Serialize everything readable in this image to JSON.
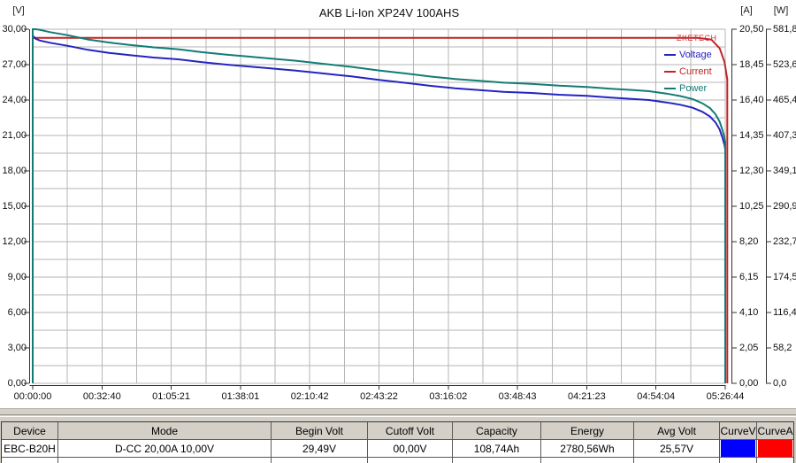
{
  "chart_data": {
    "type": "line",
    "title": "AKB Li-Ion XP24V 100AHS",
    "watermark": "ZKETECH",
    "grid": {
      "on": true,
      "color": "#b6b6b6",
      "x_divisions": 20,
      "y_divisions": 20
    },
    "x_axis": {
      "tick_labels": [
        "00:00:00",
        "00:32:40",
        "01:05:21",
        "01:38:01",
        "02:10:42",
        "02:43:22",
        "03:16:02",
        "03:48:43",
        "04:21:23",
        "04:54:04",
        "05:26:44"
      ]
    },
    "y_axes": [
      {
        "id": "voltage",
        "unit": "[V]",
        "min": 0,
        "max": 30,
        "tick_labels": [
          "30,00",
          "27,00",
          "24,00",
          "21,00",
          "18,00",
          "15,00",
          "12,00",
          "9,00",
          "6,00",
          "3,00",
          "0,00"
        ]
      },
      {
        "id": "current",
        "unit": "[A]",
        "min": 0,
        "max": 20.5,
        "tick_labels": [
          "20,50",
          "18,45",
          "16,40",
          "14,35",
          "12,30",
          "10,25",
          "8,20",
          "6,15",
          "4,10",
          "2,05",
          "0,00"
        ]
      },
      {
        "id": "power",
        "unit": "[W]",
        "min": 0,
        "max": 581.8,
        "tick_labels": [
          "581,8",
          "523,6",
          "465,4",
          "407,3",
          "349,1",
          "290,9",
          "232,7",
          "174,5",
          "116,4",
          "58,2",
          "0,0"
        ]
      }
    ],
    "legend": {
      "position": "top-right",
      "entries": [
        {
          "label": "Voltage",
          "color": "#2424c0"
        },
        {
          "label": "Current",
          "color": "#c02424"
        },
        {
          "label": "Power",
          "color": "#127c74"
        }
      ]
    },
    "series": [
      {
        "name": "Voltage",
        "axis": "voltage",
        "color": "#2424c0",
        "points": [
          [
            0,
            29.45
          ],
          [
            0.004,
            29.2
          ],
          [
            0.01,
            29.05
          ],
          [
            0.025,
            28.85
          ],
          [
            0.05,
            28.6
          ],
          [
            0.08,
            28.25
          ],
          [
            0.11,
            28.0
          ],
          [
            0.14,
            27.8
          ],
          [
            0.175,
            27.6
          ],
          [
            0.21,
            27.45
          ],
          [
            0.245,
            27.2
          ],
          [
            0.28,
            27.0
          ],
          [
            0.31,
            26.85
          ],
          [
            0.34,
            26.7
          ],
          [
            0.38,
            26.5
          ],
          [
            0.42,
            26.25
          ],
          [
            0.46,
            26.0
          ],
          [
            0.5,
            25.7
          ],
          [
            0.54,
            25.45
          ],
          [
            0.575,
            25.2
          ],
          [
            0.61,
            25.0
          ],
          [
            0.645,
            24.85
          ],
          [
            0.68,
            24.7
          ],
          [
            0.72,
            24.6
          ],
          [
            0.76,
            24.45
          ],
          [
            0.8,
            24.35
          ],
          [
            0.835,
            24.2
          ],
          [
            0.865,
            24.1
          ],
          [
            0.89,
            24.0
          ],
          [
            0.915,
            23.8
          ],
          [
            0.935,
            23.6
          ],
          [
            0.953,
            23.35
          ],
          [
            0.967,
            23.0
          ],
          [
            0.978,
            22.6
          ],
          [
            0.986,
            22.1
          ],
          [
            0.992,
            21.5
          ],
          [
            0.996,
            20.8
          ],
          [
            0.999,
            20.2
          ],
          [
            1.0,
            19.8
          ]
        ]
      },
      {
        "name": "Current",
        "axis": "current",
        "color": "#c02424",
        "points": [
          [
            0,
            0
          ],
          [
            0,
            20.0
          ],
          [
            0.96,
            20.0
          ],
          [
            0.98,
            19.9
          ],
          [
            0.992,
            19.4
          ],
          [
            0.999,
            18.6
          ],
          [
            1.003,
            17.6
          ],
          [
            1.003,
            0
          ]
        ]
      },
      {
        "name": "Power",
        "axis": "power",
        "color": "#127c74",
        "points": [
          [
            0,
            0
          ],
          [
            0,
            581.8
          ],
          [
            0.004,
            581.8
          ],
          [
            0.01,
            581.0
          ],
          [
            0.025,
            577.0
          ],
          [
            0.05,
            572.0
          ],
          [
            0.08,
            565.0
          ],
          [
            0.11,
            560.0
          ],
          [
            0.14,
            556.0
          ],
          [
            0.175,
            552.0
          ],
          [
            0.21,
            549.0
          ],
          [
            0.245,
            544.0
          ],
          [
            0.28,
            540.0
          ],
          [
            0.31,
            537.0
          ],
          [
            0.34,
            534.0
          ],
          [
            0.38,
            530.0
          ],
          [
            0.42,
            525.0
          ],
          [
            0.46,
            520.0
          ],
          [
            0.5,
            514.0
          ],
          [
            0.54,
            509.0
          ],
          [
            0.575,
            504.0
          ],
          [
            0.61,
            500.0
          ],
          [
            0.645,
            497.0
          ],
          [
            0.68,
            494.0
          ],
          [
            0.72,
            492.0
          ],
          [
            0.76,
            489.0
          ],
          [
            0.8,
            487.0
          ],
          [
            0.835,
            484.0
          ],
          [
            0.865,
            482.0
          ],
          [
            0.89,
            480.0
          ],
          [
            0.915,
            476.0
          ],
          [
            0.935,
            472.0
          ],
          [
            0.953,
            467.0
          ],
          [
            0.967,
            460.0
          ],
          [
            0.978,
            452.0
          ],
          [
            0.986,
            442.0
          ],
          [
            0.992,
            430.0
          ],
          [
            0.996,
            416.0
          ],
          [
            0.999,
            404.0
          ],
          [
            1.0,
            396.0
          ],
          [
            1.0,
            0
          ]
        ]
      }
    ]
  },
  "summary_table": {
    "columns": [
      {
        "label": "Device"
      },
      {
        "label": "Mode"
      },
      {
        "label": "Begin Volt"
      },
      {
        "label": "Cutoff Volt"
      },
      {
        "label": "Capacity"
      },
      {
        "label": "Energy"
      },
      {
        "label": "Avg Volt"
      },
      {
        "label": "CurveV"
      },
      {
        "label": "CurveA"
      }
    ],
    "row": {
      "device": "EBC-B20H",
      "mode": "D-CC  20,00A  10,00V",
      "begin_volt": "29,49V",
      "cutoff_volt": "00,00V",
      "capacity": "108,74Ah",
      "energy": "2780,56Wh",
      "avg_volt": "25,57V",
      "curve_v_color": "#0000ff",
      "curve_a_color": "#ff0000"
    }
  }
}
